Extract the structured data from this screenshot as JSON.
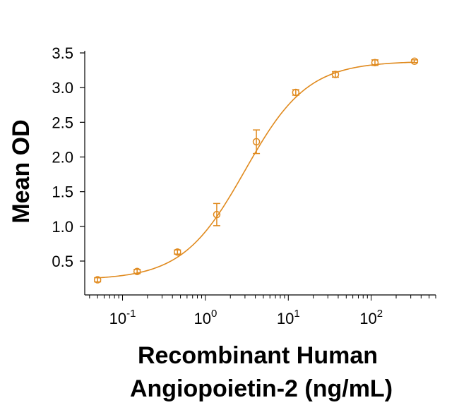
{
  "chart_data": {
    "type": "scatter",
    "x_scale": "log",
    "xlabel_line1": "Recombinant Human",
    "xlabel_line2": "Angiopoietin-2 (ng/mL)",
    "ylabel": "Mean OD",
    "xlim": [
      0.035,
      600
    ],
    "ylim": [
      0.0,
      3.55
    ],
    "y_ticks": [
      0.5,
      1.0,
      1.5,
      2.0,
      2.5,
      3.0,
      3.5
    ],
    "y_tick_labels": [
      "0.5",
      "1.0",
      "1.5",
      "2.0",
      "2.5",
      "3.0",
      "3.5"
    ],
    "x_ticks": [
      {
        "value": 0.1,
        "base": "10",
        "exp": "-1"
      },
      {
        "value": 1,
        "base": "10",
        "exp": "0"
      },
      {
        "value": 10,
        "base": "10",
        "exp": "1"
      },
      {
        "value": 100,
        "base": "10",
        "exp": "2"
      }
    ],
    "color": "#e08a1e",
    "points": [
      {
        "x": 0.05,
        "y": 0.23,
        "err": 0.03
      },
      {
        "x": 0.15,
        "y": 0.35,
        "err": 0.03
      },
      {
        "x": 0.46,
        "y": 0.63,
        "err": 0.03
      },
      {
        "x": 1.37,
        "y": 1.17,
        "err": 0.16
      },
      {
        "x": 4.12,
        "y": 2.22,
        "err": 0.17
      },
      {
        "x": 12.3,
        "y": 2.93,
        "err": 0.04
      },
      {
        "x": 37.0,
        "y": 3.19,
        "err": 0.04
      },
      {
        "x": 111.0,
        "y": 3.36,
        "err": 0.04
      },
      {
        "x": 333.0,
        "y": 3.38,
        "err": 0.02
      }
    ],
    "fit": {
      "bottom": 0.23,
      "top": 3.38,
      "ec50": 3.0,
      "hill": 1.15
    }
  }
}
